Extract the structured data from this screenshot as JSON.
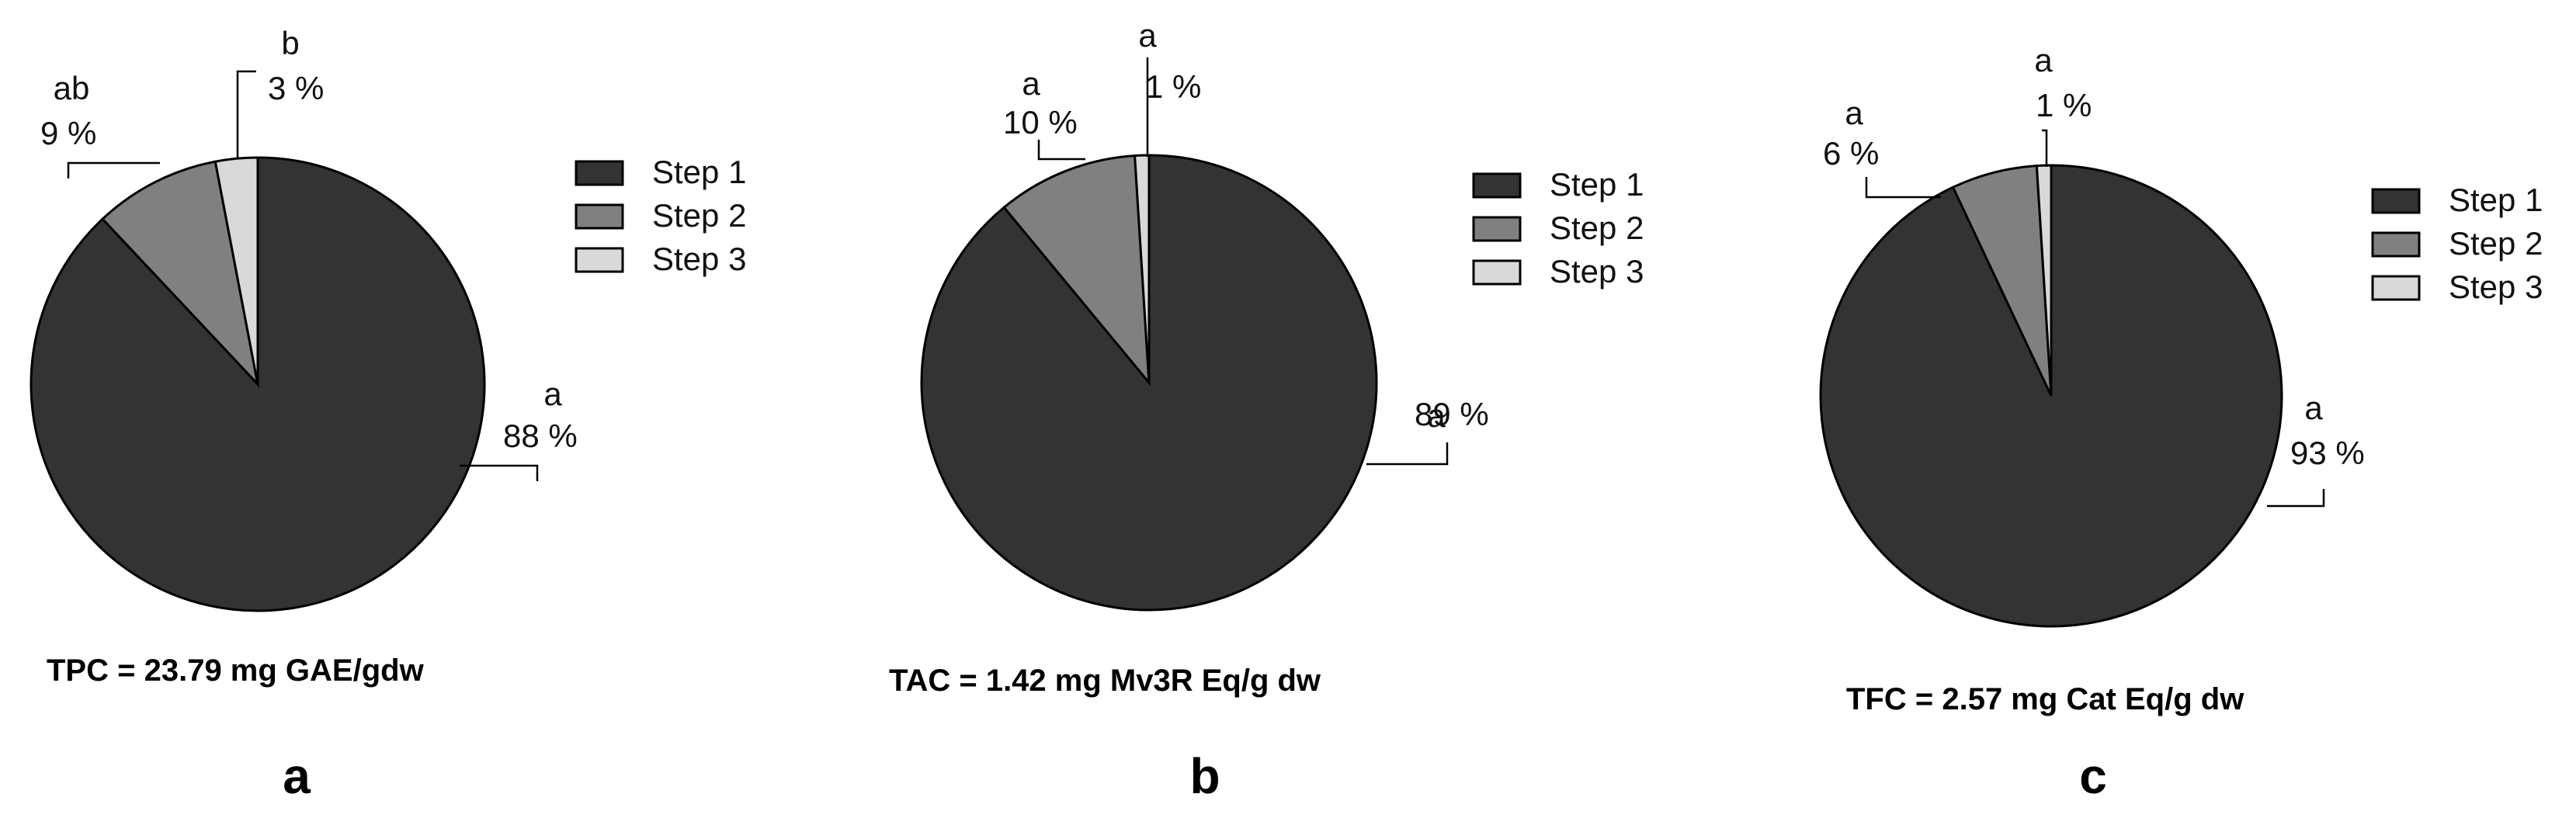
{
  "colors": {
    "step1": "#333333",
    "step2": "#808080",
    "step3": "#d9d9d9",
    "stroke": "#000000"
  },
  "legend": [
    "Step 1",
    "Step 2",
    "Step 3"
  ],
  "chart_data": [
    {
      "type": "pie",
      "panel": "a",
      "caption": "TPC = 23.79 mg GAE/gdw",
      "slices": [
        {
          "name": "Step 1",
          "value": 88,
          "value_label": "88 %",
          "letter": "a"
        },
        {
          "name": "Step 2",
          "value": 9,
          "value_label": "9 %",
          "letter": "ab"
        },
        {
          "name": "Step 3",
          "value": 3,
          "value_label": "3 %",
          "letter": "b"
        }
      ]
    },
    {
      "type": "pie",
      "panel": "b",
      "caption": "TAC = 1.42 mg Mv3R Eq/g dw",
      "slices": [
        {
          "name": "Step 1",
          "value": 89,
          "value_label": "89 %",
          "letter": "a"
        },
        {
          "name": "Step 2",
          "value": 10,
          "value_label": "10 %",
          "letter": "a"
        },
        {
          "name": "Step 3",
          "value": 1,
          "value_label": "1 %",
          "letter": "a"
        }
      ]
    },
    {
      "type": "pie",
      "panel": "c",
      "caption": "TFC = 2.57 mg Cat Eq/g dw",
      "slices": [
        {
          "name": "Step 1",
          "value": 93,
          "value_label": "93 %",
          "letter": "a"
        },
        {
          "name": "Step 2",
          "value": 6,
          "value_label": "6 %",
          "letter": "a"
        },
        {
          "name": "Step 3",
          "value": 1,
          "value_label": "1 %",
          "letter": "a"
        }
      ]
    }
  ]
}
